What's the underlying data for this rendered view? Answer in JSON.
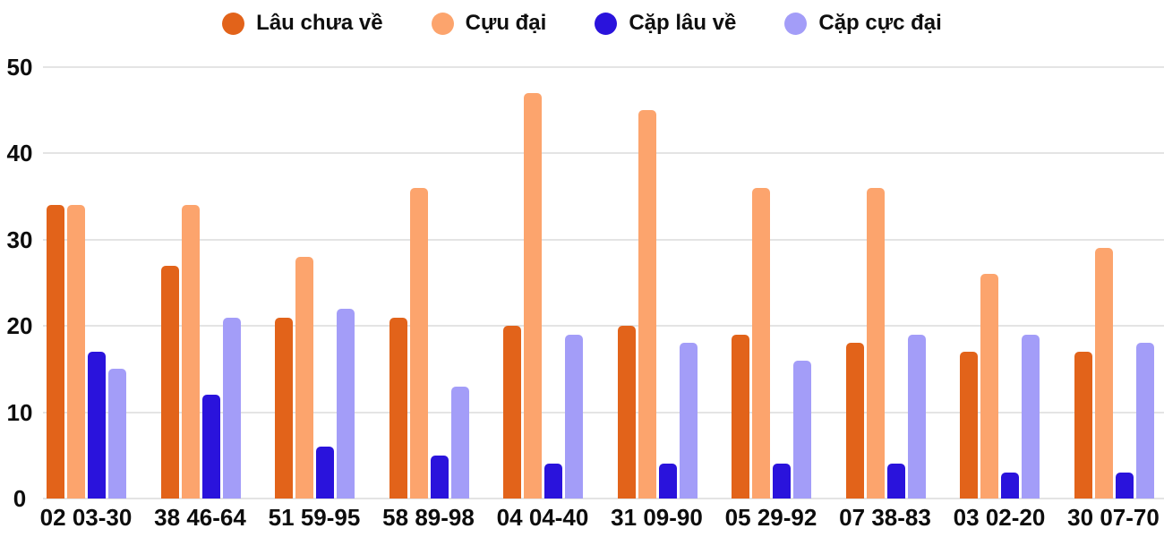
{
  "chart_data": {
    "type": "bar",
    "title": "",
    "xlabel": "",
    "ylabel": "",
    "categories": [
      "02 03-30",
      "38 46-64",
      "51 59-95",
      "58 89-98",
      "04 04-40",
      "31 09-90",
      "05 29-92",
      "07 38-83",
      "03 02-20",
      "30 07-70"
    ],
    "series": [
      {
        "name": "Lâu chưa về",
        "color": "#E2631A",
        "values": [
          34,
          27,
          21,
          21,
          20,
          20,
          19,
          18,
          17,
          17
        ]
      },
      {
        "name": "Cựu đại",
        "color": "#FCA46D",
        "values": [
          34,
          34,
          28,
          36,
          47,
          45,
          36,
          36,
          26,
          29
        ]
      },
      {
        "name": "Cặp lâu về",
        "color": "#2A13DC",
        "values": [
          17,
          12,
          6,
          5,
          4,
          4,
          4,
          4,
          3,
          3
        ]
      },
      {
        "name": "Cặp cực đại",
        "color": "#A39DF8",
        "values": [
          15,
          21,
          22,
          13,
          19,
          18,
          16,
          19,
          19,
          18
        ]
      }
    ],
    "ylim": [
      0,
      50
    ],
    "yticks": [
      0,
      10,
      20,
      30,
      40,
      50
    ],
    "grid": true,
    "legend_position": "top",
    "colors": {
      "grid_line": "#e4e4e4",
      "text": "#0d0d0d",
      "background": "#ffffff"
    }
  }
}
